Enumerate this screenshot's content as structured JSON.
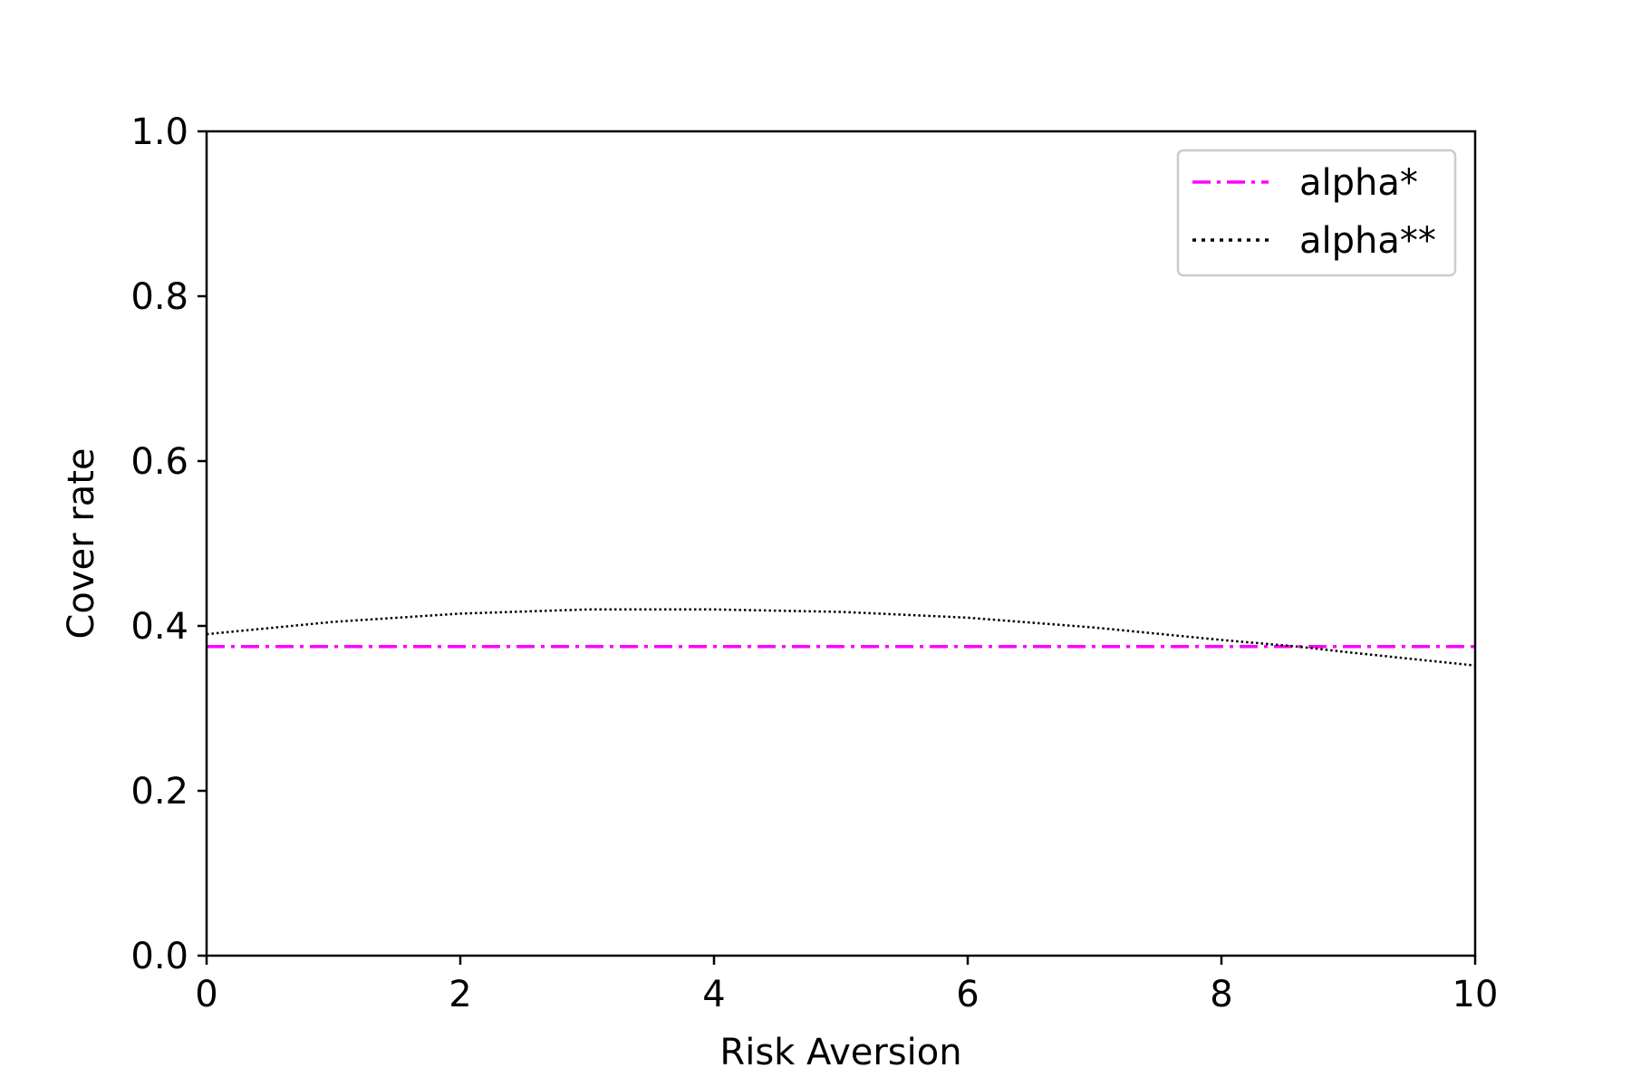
{
  "chart_data": {
    "type": "line",
    "xlabel": "Risk Aversion",
    "ylabel": "Cover rate",
    "xlim": [
      0,
      10
    ],
    "ylim": [
      0,
      1.0
    ],
    "xticks": [
      "0",
      "2",
      "4",
      "6",
      "8",
      "10"
    ],
    "yticks": [
      "0.0",
      "0.2",
      "0.4",
      "0.6",
      "0.8",
      "1.0"
    ],
    "grid": false,
    "legend_position": "upper right",
    "series": [
      {
        "name": "alpha*",
        "color": "#ff00ff",
        "linestyle": "dash-dot",
        "x": [
          0,
          10
        ],
        "y": [
          0.375,
          0.375
        ]
      },
      {
        "name": "alpha**",
        "color": "#000000",
        "linestyle": "dotted",
        "x": [
          0,
          1,
          2,
          3,
          4,
          5,
          6,
          7,
          8,
          8.6,
          9,
          10
        ],
        "y": [
          0.39,
          0.405,
          0.415,
          0.42,
          0.42,
          0.417,
          0.41,
          0.398,
          0.383,
          0.375,
          0.368,
          0.352
        ]
      }
    ]
  }
}
